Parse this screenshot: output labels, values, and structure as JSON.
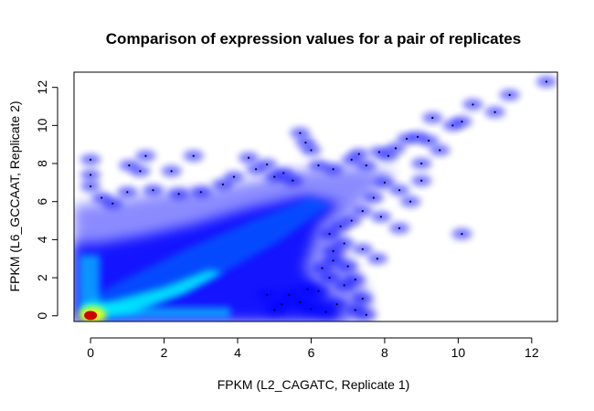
{
  "chart_data": {
    "type": "scatter",
    "title": "Comparison of expression values for a pair of replicates",
    "xlabel": "FPKM (L2_CAGATC, Replicate 1)",
    "ylabel": "FPKM (L6_GCCAAT, Replicate 2)",
    "xlim": [
      -0.45,
      12.7
    ],
    "ylim": [
      -0.3,
      12.8
    ],
    "xticks": [
      0,
      2,
      4,
      6,
      8,
      10,
      12
    ],
    "yticks": [
      0,
      2,
      4,
      6,
      8,
      10,
      12
    ],
    "style": "smoothed density scatter",
    "colors": {
      "low_density": "#0000ff",
      "mid_density": "#00ffff",
      "high_density": "#ffff00",
      "peak_density": "#cc0000"
    },
    "outlier_points": [
      [
        0.0,
        8.2
      ],
      [
        0.0,
        7.4
      ],
      [
        0.0,
        6.8
      ],
      [
        0.3,
        6.2
      ],
      [
        0.6,
        5.9
      ],
      [
        1.05,
        7.9
      ],
      [
        1.35,
        7.6
      ],
      [
        1.5,
        8.4
      ],
      [
        2.2,
        7.6
      ],
      [
        2.8,
        8.4
      ],
      [
        1.0,
        6.5
      ],
      [
        1.7,
        6.6
      ],
      [
        2.4,
        6.4
      ],
      [
        3.0,
        6.5
      ],
      [
        3.6,
        6.9
      ],
      [
        3.9,
        7.3
      ],
      [
        4.3,
        8.3
      ],
      [
        4.5,
        7.7
      ],
      [
        4.8,
        7.95
      ],
      [
        5.25,
        7.5
      ],
      [
        5.0,
        7.3
      ],
      [
        5.5,
        7.1
      ],
      [
        5.7,
        9.6
      ],
      [
        5.85,
        9.1
      ],
      [
        6.0,
        8.7
      ],
      [
        6.2,
        7.9
      ],
      [
        6.6,
        7.7
      ],
      [
        7.1,
        8.2
      ],
      [
        7.3,
        8.5
      ],
      [
        7.5,
        7.9
      ],
      [
        7.85,
        8.6
      ],
      [
        8.1,
        8.4
      ],
      [
        8.3,
        8.8
      ],
      [
        8.6,
        9.3
      ],
      [
        8.9,
        9.4
      ],
      [
        9.0,
        8.0
      ],
      [
        9.2,
        9.2
      ],
      [
        9.5,
        8.7
      ],
      [
        9.3,
        10.4
      ],
      [
        9.85,
        10.0
      ],
      [
        10.1,
        10.2
      ],
      [
        10.4,
        11.1
      ],
      [
        11.0,
        10.7
      ],
      [
        11.4,
        11.6
      ],
      [
        12.4,
        12.3
      ],
      [
        8.7,
        6.0
      ],
      [
        9.0,
        7.1
      ],
      [
        8.4,
        6.6
      ],
      [
        8.0,
        7.0
      ],
      [
        7.7,
        6.2
      ],
      [
        7.4,
        5.5
      ],
      [
        7.1,
        5.0
      ],
      [
        6.8,
        4.7
      ],
      [
        6.5,
        4.3
      ],
      [
        6.9,
        3.8
      ],
      [
        7.4,
        3.5
      ],
      [
        6.6,
        2.9
      ],
      [
        7.0,
        2.6
      ],
      [
        6.5,
        2.0
      ],
      [
        6.9,
        1.6
      ],
      [
        7.2,
        1.9
      ],
      [
        7.4,
        0.9
      ],
      [
        7.2,
        0.3
      ],
      [
        7.5,
        0.05
      ],
      [
        6.2,
        1.3
      ],
      [
        5.9,
        1.4
      ],
      [
        10.1,
        4.3
      ],
      [
        7.9,
        5.2
      ],
      [
        8.4,
        4.6
      ],
      [
        5.4,
        1.1
      ],
      [
        5.7,
        0.7
      ],
      [
        6.0,
        0.35
      ],
      [
        6.4,
        0.2
      ],
      [
        6.7,
        0.6
      ],
      [
        5.2,
        0.6
      ],
      [
        4.8,
        1.1
      ],
      [
        5.0,
        0.3
      ],
      [
        6.3,
        2.5
      ],
      [
        6.6,
        3.4
      ],
      [
        7.8,
        3.0
      ]
    ]
  }
}
